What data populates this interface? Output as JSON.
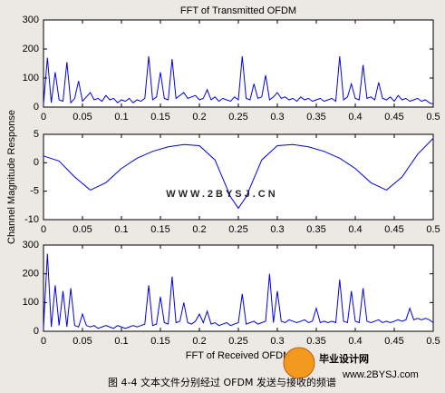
{
  "chart_data": [
    {
      "type": "line",
      "title": "FFT of Transmitted OFDM",
      "x": [
        0,
        0.005,
        0.01,
        0.015,
        0.02,
        0.025,
        0.03,
        0.035,
        0.04,
        0.045,
        0.05,
        0.055,
        0.06,
        0.065,
        0.07,
        0.075,
        0.08,
        0.085,
        0.09,
        0.095,
        0.1,
        0.105,
        0.11,
        0.115,
        0.12,
        0.125,
        0.13,
        0.135,
        0.14,
        0.145,
        0.15,
        0.155,
        0.16,
        0.165,
        0.17,
        0.175,
        0.18,
        0.185,
        0.19,
        0.195,
        0.2,
        0.205,
        0.21,
        0.215,
        0.22,
        0.225,
        0.23,
        0.235,
        0.24,
        0.245,
        0.25,
        0.255,
        0.26,
        0.265,
        0.27,
        0.275,
        0.28,
        0.285,
        0.29,
        0.295,
        0.3,
        0.305,
        0.31,
        0.315,
        0.32,
        0.325,
        0.33,
        0.335,
        0.34,
        0.345,
        0.35,
        0.355,
        0.36,
        0.365,
        0.37,
        0.375,
        0.38,
        0.385,
        0.39,
        0.395,
        0.4,
        0.405,
        0.41,
        0.415,
        0.42,
        0.425,
        0.43,
        0.435,
        0.44,
        0.445,
        0.45,
        0.455,
        0.46,
        0.465,
        0.47,
        0.475,
        0.48,
        0.485,
        0.49,
        0.495,
        0.5
      ],
      "values": [
        10,
        170,
        15,
        120,
        25,
        20,
        155,
        15,
        30,
        90,
        20,
        35,
        50,
        25,
        30,
        20,
        40,
        25,
        30,
        15,
        25,
        20,
        30,
        15,
        25,
        20,
        30,
        175,
        25,
        35,
        120,
        30,
        25,
        165,
        30,
        40,
        50,
        30,
        35,
        40,
        25,
        30,
        60,
        25,
        35,
        20,
        30,
        25,
        20,
        35,
        25,
        175,
        30,
        25,
        80,
        30,
        35,
        110,
        25,
        35,
        50,
        30,
        35,
        25,
        30,
        20,
        35,
        25,
        30,
        20,
        25,
        30,
        20,
        25,
        30,
        20,
        175,
        25,
        35,
        80,
        30,
        25,
        145,
        30,
        35,
        25,
        85,
        30,
        25,
        35,
        20,
        40,
        25,
        30,
        20,
        25,
        30,
        20,
        25,
        15,
        10
      ],
      "color": "#0000ee",
      "xlim": [
        0,
        0.5
      ],
      "xticks": [
        0,
        0.05,
        0.1,
        0.15,
        0.2,
        0.25,
        0.3,
        0.35,
        0.4,
        0.45,
        0.5
      ],
      "ylim": [
        0,
        300
      ],
      "yticks": [
        0,
        100,
        200,
        300
      ]
    },
    {
      "type": "line",
      "ylabel": "Channel Magnitude Response",
      "x": [
        0,
        0.02,
        0.04,
        0.06,
        0.08,
        0.1,
        0.12,
        0.14,
        0.16,
        0.18,
        0.2,
        0.22,
        0.24,
        0.25,
        0.26,
        0.28,
        0.3,
        0.32,
        0.34,
        0.36,
        0.38,
        0.4,
        0.42,
        0.44,
        0.46,
        0.48,
        0.5
      ],
      "values": [
        1.2,
        0.3,
        -2.5,
        -4.8,
        -3.5,
        -1,
        0.8,
        2,
        2.8,
        3.2,
        3,
        0.5,
        -6,
        -8,
        -6,
        0.5,
        3,
        3.2,
        2.8,
        2,
        0.8,
        -1,
        -3.5,
        -4.8,
        -2.5,
        1.5,
        4.3
      ],
      "color": "#0000ee",
      "xlim": [
        0,
        0.5
      ],
      "xticks": [
        0,
        0.05,
        0.1,
        0.15,
        0.2,
        0.25,
        0.3,
        0.35,
        0.4,
        0.45,
        0.5
      ],
      "ylim": [
        -10,
        5
      ],
      "yticks": [
        -10,
        -5,
        0,
        5
      ]
    },
    {
      "type": "line",
      "xlabel": "FFT of Received OFDM",
      "x": [
        0,
        0.005,
        0.01,
        0.015,
        0.02,
        0.025,
        0.03,
        0.035,
        0.04,
        0.045,
        0.05,
        0.055,
        0.06,
        0.065,
        0.07,
        0.075,
        0.08,
        0.085,
        0.09,
        0.095,
        0.1,
        0.105,
        0.11,
        0.115,
        0.12,
        0.125,
        0.13,
        0.135,
        0.14,
        0.145,
        0.15,
        0.155,
        0.16,
        0.165,
        0.17,
        0.175,
        0.18,
        0.185,
        0.19,
        0.195,
        0.2,
        0.205,
        0.21,
        0.215,
        0.22,
        0.225,
        0.23,
        0.235,
        0.24,
        0.245,
        0.25,
        0.255,
        0.26,
        0.265,
        0.27,
        0.275,
        0.28,
        0.285,
        0.29,
        0.295,
        0.3,
        0.305,
        0.31,
        0.315,
        0.32,
        0.325,
        0.33,
        0.335,
        0.34,
        0.345,
        0.35,
        0.355,
        0.36,
        0.365,
        0.37,
        0.375,
        0.38,
        0.385,
        0.39,
        0.395,
        0.4,
        0.405,
        0.41,
        0.415,
        0.42,
        0.425,
        0.43,
        0.435,
        0.44,
        0.445,
        0.45,
        0.455,
        0.46,
        0.465,
        0.47,
        0.475,
        0.48,
        0.485,
        0.49,
        0.495,
        0.5
      ],
      "values": [
        10,
        270,
        15,
        160,
        20,
        140,
        15,
        150,
        20,
        15,
        60,
        20,
        15,
        20,
        10,
        15,
        20,
        15,
        10,
        20,
        15,
        10,
        15,
        20,
        15,
        20,
        25,
        160,
        20,
        25,
        120,
        30,
        25,
        190,
        30,
        35,
        100,
        30,
        25,
        35,
        60,
        30,
        70,
        25,
        30,
        20,
        25,
        30,
        20,
        25,
        30,
        130,
        25,
        30,
        35,
        25,
        30,
        35,
        200,
        30,
        140,
        35,
        30,
        40,
        35,
        30,
        35,
        40,
        30,
        35,
        80,
        30,
        35,
        30,
        35,
        30,
        180,
        35,
        30,
        140,
        35,
        30,
        150,
        35,
        30,
        35,
        40,
        30,
        35,
        30,
        35,
        40,
        35,
        40,
        80,
        40,
        45,
        40,
        45,
        40,
        30
      ],
      "color": "#0000ee",
      "xlim": [
        0,
        0.5
      ],
      "xticks": [
        0,
        0.05,
        0.1,
        0.15,
        0.2,
        0.25,
        0.3,
        0.35,
        0.4,
        0.45,
        0.5
      ],
      "ylim": [
        0,
        300
      ],
      "yticks": [
        0,
        100,
        200,
        300
      ]
    }
  ],
  "watermarks": [
    "WWW.2BYSJ.CN",
    "毕业设计网",
    "www.2BYSJ.com"
  ],
  "caption": "图 4-4 文本文件分别经过 OFDM 发送与接收的频谱"
}
